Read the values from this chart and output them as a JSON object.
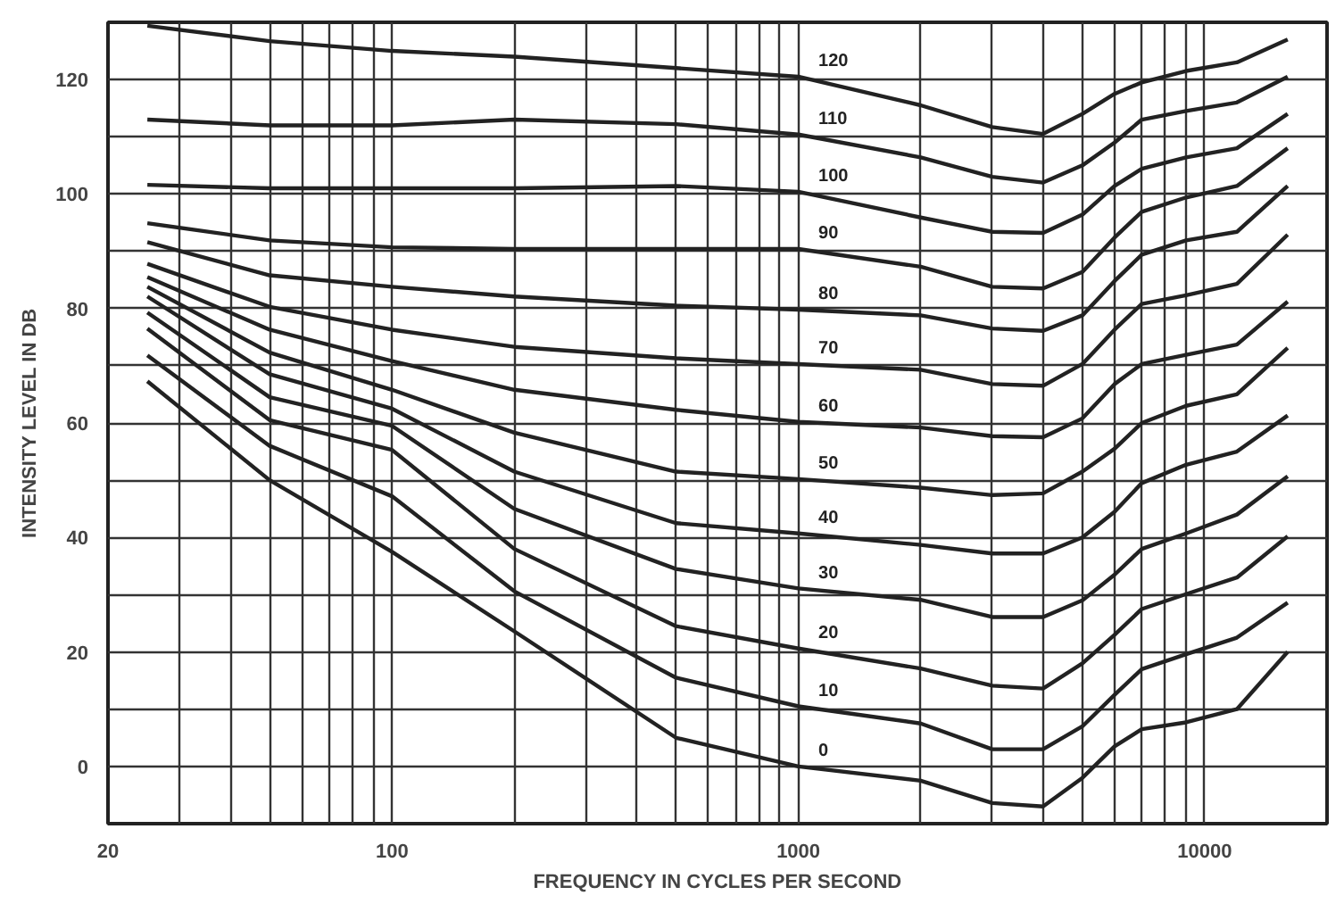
{
  "chart_data": {
    "type": "line",
    "xlabel": "FREQUENCY IN CYCLES PER SECOND",
    "ylabel": "INTENSITY LEVEL IN DB",
    "log": "x",
    "grid": true,
    "marker": "none",
    "line_style": "solid",
    "xlim": [
      20,
      20000
    ],
    "ylim": [
      -10,
      130
    ],
    "xticks": [
      20,
      {
        "value": 30,
        "label": null
      },
      {
        "value": 40,
        "label": null
      },
      {
        "value": 50,
        "label": null
      },
      {
        "value": 60,
        "label": null
      },
      {
        "value": 70,
        "label": null
      },
      {
        "value": 80,
        "label": null
      },
      {
        "value": 90,
        "label": null
      },
      100,
      {
        "value": 200,
        "label": null
      },
      {
        "value": 300,
        "label": null
      },
      {
        "value": 400,
        "label": null
      },
      {
        "value": 500,
        "label": null
      },
      {
        "value": 600,
        "label": null
      },
      {
        "value": 700,
        "label": null
      },
      {
        "value": 800,
        "label": null
      },
      {
        "value": 900,
        "label": null
      },
      1000,
      {
        "value": 2000,
        "label": null
      },
      {
        "value": 3000,
        "label": null
      },
      {
        "value": 4000,
        "label": null
      },
      {
        "value": 5000,
        "label": null
      },
      {
        "value": 6000,
        "label": null
      },
      {
        "value": 7000,
        "label": null
      },
      {
        "value": 8000,
        "label": null
      },
      {
        "value": 9000,
        "label": null
      },
      10000
    ],
    "yticks": [
      0,
      {
        "value": 10,
        "label": null
      },
      20,
      {
        "value": 30,
        "label": null
      },
      40,
      {
        "value": 50,
        "label": null
      },
      60,
      {
        "value": 70,
        "label": null
      },
      80,
      {
        "value": 90,
        "label": null
      },
      100,
      {
        "value": 110,
        "label": null
      },
      120
    ],
    "x": [
      25,
      50,
      100,
      200,
      500,
      1000,
      2000,
      3000,
      4000,
      5000,
      6000,
      7000,
      9000,
      12000,
      16000
    ],
    "series": [
      {
        "name": "120",
        "color": "#222222",
        "values": [
          129.4,
          126.7,
          125,
          124,
          122,
          120.5,
          115.5,
          111.7,
          110.5,
          114,
          117.5,
          119.5,
          121.5,
          123,
          127
        ]
      },
      {
        "name": "110",
        "color": "#222222",
        "values": [
          113,
          112,
          112,
          113,
          112.2,
          110.4,
          106.4,
          103,
          102,
          105,
          109,
          113,
          114.5,
          116,
          120.5
        ]
      },
      {
        "name": "100",
        "color": "#222222",
        "values": [
          101.6,
          101,
          101,
          101,
          101.4,
          100.4,
          95.9,
          93.4,
          93.2,
          96.4,
          101.4,
          104.4,
          106.4,
          108,
          114
        ]
      },
      {
        "name": "90",
        "color": "#222222",
        "values": [
          94.9,
          91.9,
          90.7,
          90.4,
          90.4,
          90.4,
          87.3,
          83.8,
          83.5,
          86.4,
          92.4,
          96.9,
          99.4,
          101.4,
          108
        ]
      },
      {
        "name": "80",
        "color": "#222222",
        "values": [
          91.6,
          85.8,
          83.8,
          82.1,
          80.5,
          79.8,
          78.8,
          76.5,
          76.1,
          78.8,
          84.8,
          89.4,
          91.9,
          93.4,
          101.4
        ]
      },
      {
        "name": "70",
        "color": "#222222",
        "values": [
          87.8,
          80.3,
          76.3,
          73.3,
          71.3,
          70.3,
          69.3,
          66.8,
          66.5,
          70.3,
          76.3,
          80.8,
          82.3,
          84.3,
          92.9
        ]
      },
      {
        "name": "60",
        "color": "#222222",
        "values": [
          85.5,
          76.3,
          70.8,
          65.8,
          62.3,
          60.2,
          59.2,
          57.7,
          57.5,
          60.8,
          66.8,
          70.3,
          71.9,
          73.7,
          81.2
        ]
      },
      {
        "name": "50",
        "color": "#222222",
        "values": [
          83.8,
          72.3,
          65.8,
          58.3,
          51.5,
          50.2,
          48.7,
          47.4,
          47.7,
          51.5,
          55.5,
          60,
          63,
          65,
          73.1
        ]
      },
      {
        "name": "40",
        "color": "#222222",
        "values": [
          82.1,
          68.5,
          62.5,
          51.5,
          42.5,
          40.7,
          38.7,
          37.2,
          37.2,
          40,
          44.5,
          49.5,
          52.7,
          55,
          61.3
        ]
      },
      {
        "name": "30",
        "color": "#222222",
        "values": [
          79.3,
          64.5,
          59.5,
          45,
          34.5,
          31.1,
          29.1,
          26.1,
          26.1,
          29,
          33.5,
          38,
          40.7,
          44,
          50.7
        ]
      },
      {
        "name": "20",
        "color": "#222222",
        "values": [
          76.5,
          60.5,
          55.3,
          38,
          24.5,
          20.6,
          17.1,
          14.1,
          13.6,
          18,
          23,
          27.5,
          30.1,
          33,
          40.2
        ]
      },
      {
        "name": "10",
        "color": "#222222",
        "values": [
          71.8,
          56,
          47.2,
          30.6,
          15.5,
          10.5,
          7.5,
          3,
          3,
          7,
          12.5,
          17,
          19.6,
          22.5,
          28.6
        ]
      },
      {
        "name": "0",
        "color": "#222222",
        "values": [
          67.3,
          50,
          37.5,
          23.6,
          5,
          0,
          -2.5,
          -6.4,
          -7,
          -2,
          3.5,
          6.5,
          7.7,
          10,
          20
        ]
      }
    ]
  }
}
